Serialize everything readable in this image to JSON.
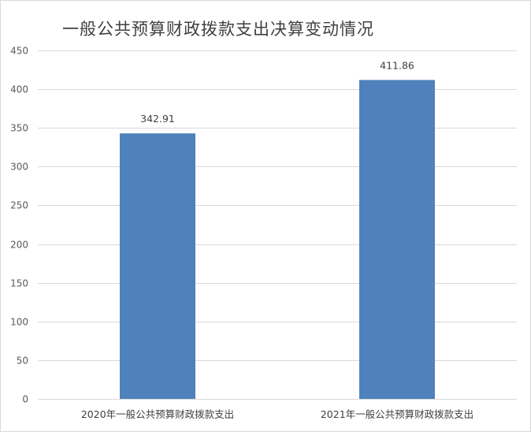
{
  "chart_data": {
    "type": "bar",
    "title": "一般公共预算财政拨款支出决算变动情况",
    "categories": [
      "2020年一般公共预算财政拨款支出",
      "2021年一般公共预算财政拨款支出"
    ],
    "values": [
      342.91,
      411.86
    ],
    "data_labels": [
      "342.91",
      "411.86"
    ],
    "xlabel": "",
    "ylabel": "",
    "ylim": [
      0,
      450
    ],
    "yticks": [
      0,
      50,
      100,
      150,
      200,
      250,
      300,
      350,
      400,
      450
    ],
    "grid": true,
    "legend": "none",
    "bar_color": "#4f81bd"
  }
}
